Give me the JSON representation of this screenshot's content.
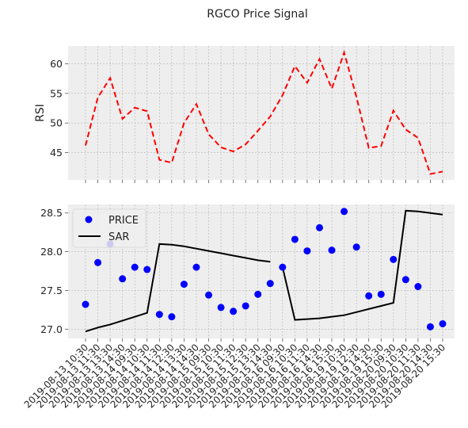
{
  "title": "RGCO Price Signal",
  "chart_data": [
    {
      "type": "line",
      "ylabel": "RSI",
      "ylim": [
        40.4,
        63.0
      ],
      "yticks": [
        45,
        50,
        55,
        60
      ],
      "grid": true,
      "series": [
        {
          "color": "#ff0000",
          "style": "dashed",
          "values": [
            46.2,
            54.3,
            57.6,
            50.7,
            52.6,
            52.0,
            43.8,
            43.3,
            50.0,
            53.2,
            48.1,
            45.9,
            45.2,
            46.4,
            48.7,
            51.1,
            54.7,
            59.6,
            56.8,
            60.8,
            55.8,
            61.9,
            54.4,
            45.8,
            46.1,
            52.1,
            48.9,
            47.5,
            41.4,
            41.8
          ]
        }
      ]
    },
    {
      "type": "line",
      "ylim": [
        26.88,
        28.61
      ],
      "yticks": [
        27.0,
        27.5,
        28.0,
        28.5
      ],
      "ytick_labels": [
        "27.0",
        "27.5",
        "28.0",
        "28.5"
      ],
      "grid": true,
      "legend": "top-left",
      "series": [
        {
          "name": "PRICE",
          "type": "scatter",
          "color": "#0000ff",
          "values": [
            27.32,
            27.86,
            28.1,
            27.65,
            27.8,
            27.77,
            27.19,
            27.16,
            27.58,
            27.8,
            27.44,
            27.28,
            27.23,
            27.3,
            27.45,
            27.59,
            27.8,
            28.16,
            28.01,
            28.31,
            28.02,
            28.52,
            28.06,
            27.43,
            27.45,
            27.9,
            27.64,
            27.55,
            27.03,
            27.07
          ]
        },
        {
          "name": "SAR",
          "type": "line",
          "color": "#000000",
          "segments": [
            {
              "start": 0,
              "values": [
                26.97,
                27.02,
                27.06,
                27.11,
                27.16,
                27.21,
                28.1,
                28.09,
                28.07,
                28.04,
                28.01,
                27.98,
                27.95,
                27.92,
                27.89,
                27.87
              ]
            },
            {
              "start": 16,
              "values": [
                27.8,
                27.12,
                27.13,
                27.14,
                27.16,
                27.18,
                27.22,
                27.26,
                27.3,
                27.34,
                28.53,
                28.52,
                28.5,
                28.48
              ]
            }
          ]
        }
      ]
    }
  ],
  "x_labels": [
    "2019-08-13 10:30",
    "2019-08-13 11:30",
    "2019-08-13 13:30",
    "2019-08-13 14:30",
    "2019-08-14 09:30",
    "2019-08-14 10:30",
    "2019-08-14 11:30",
    "2019-08-14 12:30",
    "2019-08-14 13:30",
    "2019-08-14 14:30",
    "2019-08-15 09:30",
    "2019-08-15 10:30",
    "2019-08-15 11:30",
    "2019-08-15 12:30",
    "2019-08-15 13:30",
    "2019-08-15 14:30",
    "2019-08-16 09:30",
    "2019-08-16 10:30",
    "2019-08-16 11:30",
    "2019-08-16 14:30",
    "2019-08-16 15:30",
    "2019-08-19 10:30",
    "2019-08-19 12:30",
    "2019-08-19 14:30",
    "2019-08-19 15:30",
    "2019-08-20 09:30",
    "2019-08-20 10:30",
    "2019-08-20 11:30",
    "2019-08-20 14:30",
    "2019-08-20 15:30"
  ],
  "colors": {
    "panel_bg": "#eeeeee",
    "grid": "#b2b2b2"
  }
}
